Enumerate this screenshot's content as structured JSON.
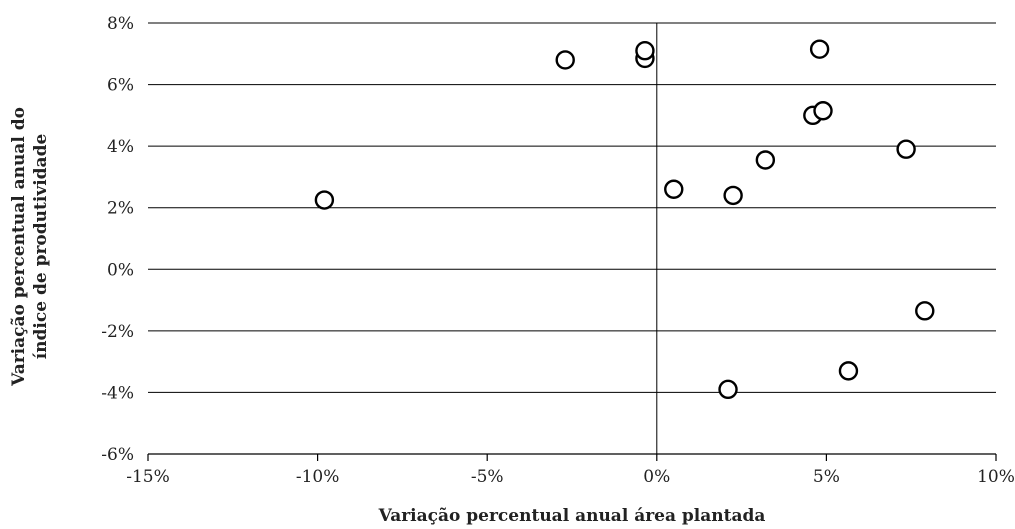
{
  "chart_data": {
    "type": "scatter",
    "title": "",
    "xlabel": "Variação percentual anual área plantada",
    "ylabel_lines": [
      "Variação percentual anual do",
      "índice de produtividade"
    ],
    "xlim": [
      -15,
      10
    ],
    "ylim": [
      -6,
      8
    ],
    "x_ticks": [
      -15,
      -10,
      -5,
      0,
      5,
      10
    ],
    "x_tick_labels": [
      "-15%",
      "-10%",
      "-5%",
      "0%",
      "5%",
      "10%"
    ],
    "y_ticks": [
      -6,
      -4,
      -2,
      0,
      2,
      4,
      6,
      8
    ],
    "y_tick_labels": [
      "-6%",
      "-4%",
      "-2%",
      "0%",
      "2%",
      "4%",
      "6%",
      "8%"
    ],
    "grid": "horizontal",
    "points": [
      {
        "x": -9.8,
        "y": 2.25
      },
      {
        "x": -2.7,
        "y": 6.8
      },
      {
        "x": -0.35,
        "y": 6.85
      },
      {
        "x": -0.35,
        "y": 7.1
      },
      {
        "x": 0.5,
        "y": 2.6
      },
      {
        "x": 2.25,
        "y": 2.4
      },
      {
        "x": 3.2,
        "y": 3.55
      },
      {
        "x": 4.6,
        "y": 5.0
      },
      {
        "x": 4.8,
        "y": 7.15
      },
      {
        "x": 4.9,
        "y": 5.15
      },
      {
        "x": 7.35,
        "y": 3.9
      },
      {
        "x": 7.9,
        "y": -1.35
      },
      {
        "x": 5.65,
        "y": -3.3
      },
      {
        "x": 2.1,
        "y": -3.9
      }
    ]
  }
}
